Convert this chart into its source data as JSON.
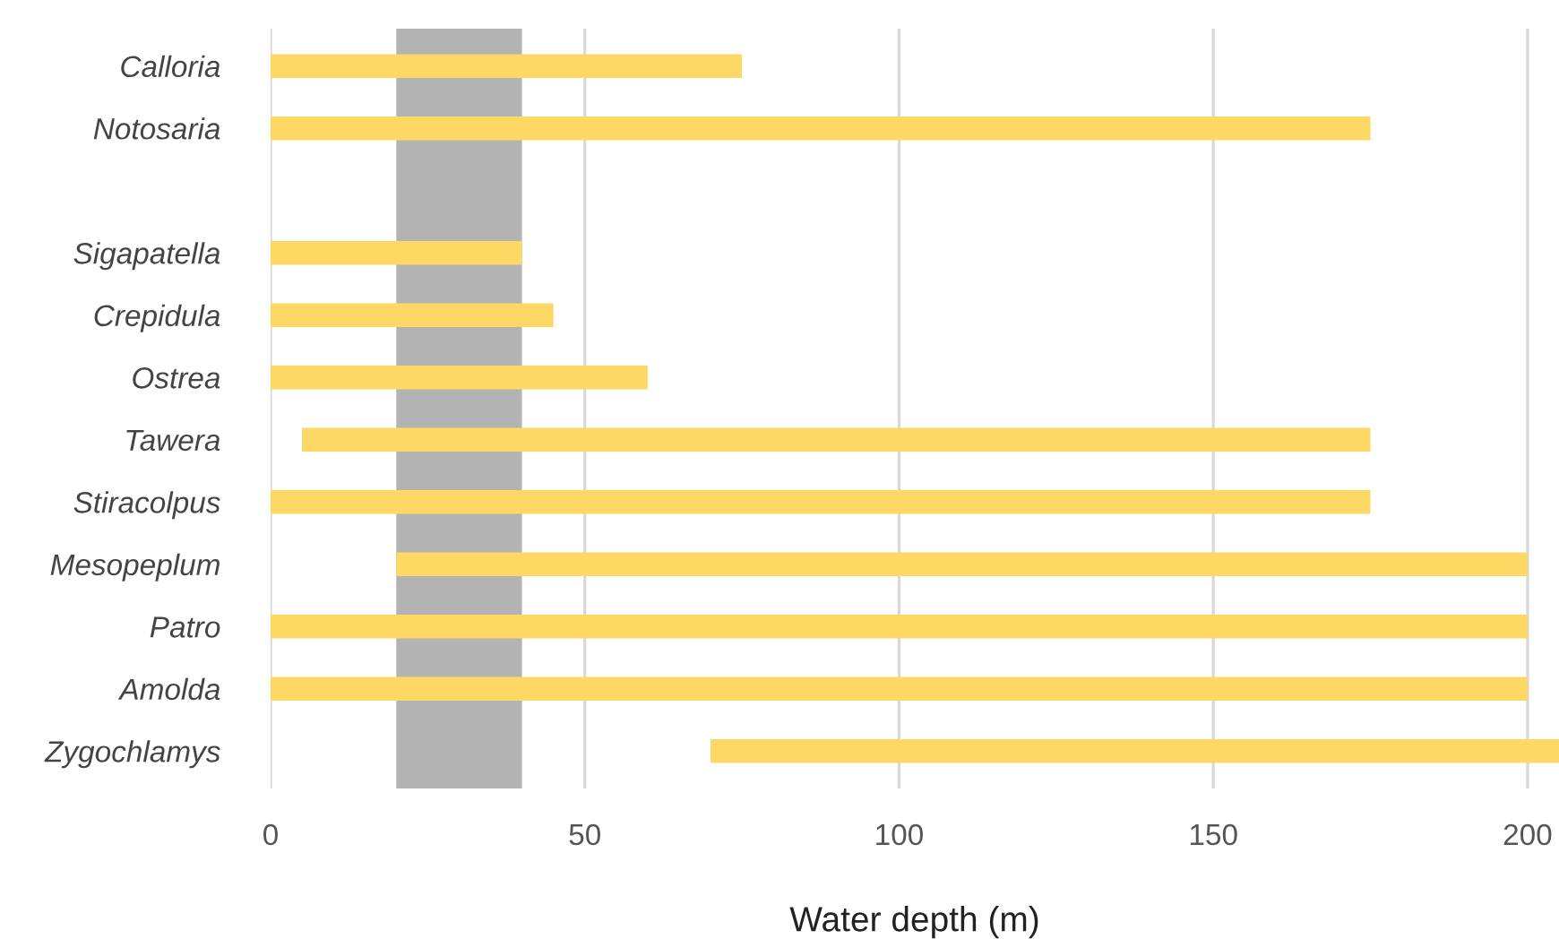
{
  "chart_data": {
    "type": "bar",
    "orientation": "horizontal",
    "xlabel": "Water depth (m)",
    "categories": [
      "Calloria",
      "Notosaria",
      null,
      "Sigapatella",
      "Crepidula",
      "Ostrea",
      "Tawera",
      "Stiracolpus",
      "Mesopeplum",
      "Patro",
      "Amolda",
      "Zygochlamys"
    ],
    "base": [
      0,
      0,
      null,
      0,
      0,
      0,
      5,
      0,
      20,
      0,
      0,
      70
    ],
    "values": [
      75,
      175,
      null,
      40,
      45,
      60,
      170,
      175,
      180,
      200,
      200,
      135
    ],
    "color": "#fdd865",
    "xlim": [
      0,
      205
    ],
    "xticks": [
      0,
      50,
      100,
      150,
      200
    ],
    "grid": "x",
    "bands": [
      {
        "axis": "x",
        "from": 20,
        "to": 40,
        "color": "#b3b3b3"
      }
    ]
  }
}
